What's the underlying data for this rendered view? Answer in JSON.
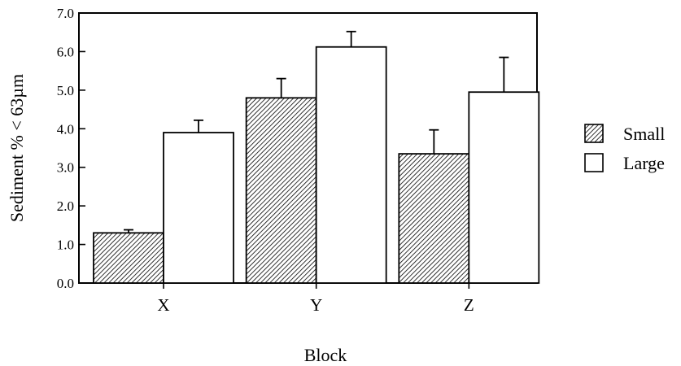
{
  "chart_data": {
    "type": "bar",
    "title": "",
    "xlabel": "Block",
    "ylabel": "Sediment % < 63µm",
    "categories": [
      "X",
      "Y",
      "Z"
    ],
    "ylim": [
      0,
      7
    ],
    "yticks": [
      "0.0",
      "1.0",
      "2.0",
      "3.0",
      "4.0",
      "5.0",
      "6.0",
      "7.0"
    ],
    "grid": false,
    "legend_position": "right",
    "series": [
      {
        "name": "Small",
        "values": [
          1.3,
          4.8,
          3.35
        ],
        "errors": [
          0.08,
          0.5,
          0.62
        ],
        "fill": "hatched"
      },
      {
        "name": "Large",
        "values": [
          3.9,
          6.12,
          4.95
        ],
        "errors": [
          0.32,
          0.4,
          0.9
        ],
        "fill": "white"
      }
    ]
  }
}
